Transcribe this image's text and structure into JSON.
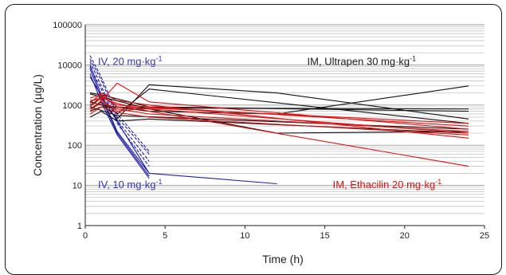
{
  "chart_data": {
    "type": "line",
    "title": "",
    "xlabel": "Time (h)",
    "ylabel": "Concentration (µg/L)",
    "xlim": [
      0,
      25
    ],
    "ylim": [
      1,
      100000
    ],
    "y_scale": "log",
    "grid": "horizontal minor + major gridlines",
    "x_ticks": [
      "0",
      "5",
      "10",
      "15",
      "20",
      "25"
    ],
    "y_ticks": [
      "1",
      "10",
      "100",
      "1000",
      "10000",
      "100000"
    ],
    "annotations": [
      {
        "parts": [
          "IV, 20 mg·kg",
          "-1"
        ],
        "color": "#3333bb",
        "x": 0.8,
        "y": 10000
      },
      {
        "parts": [
          "IM, Ultrapen 30 mg·kg",
          "-1"
        ],
        "color": "#1a1a1a",
        "x": 13.9,
        "y": 10000
      },
      {
        "parts": [
          "IV, 10 mg·kg",
          "-1"
        ],
        "color": "#3333bb",
        "x": 0.8,
        "y": 8.5
      },
      {
        "parts": [
          "IM, Ethacilin 20 mg·kg",
          "-1"
        ],
        "color": "#dd1111",
        "x": 15.5,
        "y": 8.5
      }
    ],
    "series": [
      {
        "group": "IV 20 mg/kg",
        "color": "#1f1faa",
        "dash": true,
        "x": [
          0.3,
          1,
          2,
          4
        ],
        "y": [
          17000,
          5000,
          600,
          70
        ]
      },
      {
        "group": "IV 20 mg/kg",
        "color": "#1f1faa",
        "dash": true,
        "x": [
          0.3,
          1,
          2,
          4
        ],
        "y": [
          14000,
          4200,
          500,
          60
        ]
      },
      {
        "group": "IV 20 mg/kg",
        "color": "#1f1faa",
        "dash": true,
        "x": [
          0.3,
          1,
          2,
          4
        ],
        "y": [
          12000,
          3000,
          420,
          40
        ]
      },
      {
        "group": "IV 20 mg/kg",
        "color": "#1f1faa",
        "dash": true,
        "x": [
          0.3,
          1,
          2,
          4
        ],
        "y": [
          9000,
          2500,
          350,
          30
        ]
      },
      {
        "group": "IV 10 mg/kg",
        "color": "#1f1faa",
        "dash": false,
        "x": [
          0.3,
          1,
          2,
          4
        ],
        "y": [
          10000,
          1800,
          220,
          20
        ]
      },
      {
        "group": "IV 10 mg/kg",
        "color": "#1f1faa",
        "dash": false,
        "x": [
          0.3,
          1,
          2,
          4
        ],
        "y": [
          8000,
          1500,
          200,
          17
        ]
      },
      {
        "group": "IV 10 mg/kg",
        "color": "#1f1faa",
        "dash": false,
        "x": [
          0.3,
          1,
          2,
          4
        ],
        "y": [
          6000,
          1200,
          180,
          15
        ]
      },
      {
        "group": "IV 10 mg/kg",
        "color": "#1f1faa",
        "dash": false,
        "x": [
          0.3,
          4,
          12
        ],
        "y": [
          5000,
          20,
          11
        ]
      },
      {
        "group": "IM Ultrapen 30 mg/kg",
        "color": "#111111",
        "dash": false,
        "x": [
          0.3,
          1,
          2,
          4,
          12,
          24
        ],
        "y": [
          800,
          1200,
          450,
          3200,
          2000,
          450
        ]
      },
      {
        "group": "IM Ultrapen 30 mg/kg",
        "color": "#111111",
        "dash": false,
        "x": [
          0.3,
          1,
          2,
          4,
          24
        ],
        "y": [
          1000,
          1500,
          600,
          2500,
          350
        ]
      },
      {
        "group": "IM Ultrapen 30 mg/kg",
        "color": "#111111",
        "dash": false,
        "x": [
          0.3,
          1,
          4,
          12,
          24
        ],
        "y": [
          1900,
          1600,
          800,
          200,
          220
        ]
      },
      {
        "group": "IM Ultrapen 30 mg/kg",
        "color": "#111111",
        "dash": false,
        "x": [
          0.3,
          1,
          4,
          12,
          24
        ],
        "y": [
          1200,
          1000,
          700,
          600,
          3000
        ]
      },
      {
        "group": "IM Ultrapen 30 mg/kg",
        "color": "#111111",
        "dash": false,
        "x": [
          0.3,
          1,
          4,
          24
        ],
        "y": [
          2000,
          1800,
          900,
          700
        ]
      },
      {
        "group": "IM Ultrapen 30 mg/kg",
        "color": "#111111",
        "dash": false,
        "x": [
          0.3,
          1,
          4,
          24
        ],
        "y": [
          700,
          900,
          850,
          800
        ]
      },
      {
        "group": "IM Ultrapen 30 mg/kg",
        "color": "#111111",
        "dash": false,
        "x": [
          0.3,
          1,
          2,
          4,
          24
        ],
        "y": [
          500,
          700,
          400,
          450,
          200
        ]
      },
      {
        "group": "IM Ultrapen 30 mg/kg",
        "color": "#111111",
        "dash": false,
        "x": [
          0.3,
          2,
          24
        ],
        "y": [
          900,
          550,
          250
        ]
      },
      {
        "group": "IM Ethacilin 20 mg/kg",
        "color": "#e01010",
        "dash": false,
        "x": [
          0.3,
          1,
          2,
          4,
          24
        ],
        "y": [
          900,
          1500,
          1100,
          700,
          30
        ]
      },
      {
        "group": "IM Ethacilin 20 mg/kg",
        "color": "#e01010",
        "dash": false,
        "x": [
          0.3,
          1,
          2,
          4,
          24
        ],
        "y": [
          1100,
          2000,
          1300,
          1000,
          150
        ]
      },
      {
        "group": "IM Ethacilin 20 mg/kg",
        "color": "#e01010",
        "dash": false,
        "x": [
          0.3,
          1,
          2,
          4,
          24
        ],
        "y": [
          1500,
          1800,
          900,
          800,
          200
        ]
      },
      {
        "group": "IM Ethacilin 20 mg/kg",
        "color": "#e01010",
        "dash": false,
        "x": [
          0.3,
          1,
          2,
          4,
          24
        ],
        "y": [
          700,
          1300,
          3500,
          1200,
          250
        ]
      },
      {
        "group": "IM Ethacilin 20 mg/kg",
        "color": "#e01010",
        "dash": false,
        "x": [
          0.3,
          1,
          2,
          4,
          24
        ],
        "y": [
          1200,
          1600,
          1000,
          900,
          300
        ]
      },
      {
        "group": "IM Ethacilin 20 mg/kg",
        "color": "#e01010",
        "dash": false,
        "x": [
          0.3,
          1,
          2,
          4,
          24
        ],
        "y": [
          800,
          1100,
          800,
          600,
          220
        ]
      },
      {
        "group": "IM Ethacilin 20 mg/kg",
        "color": "#e01010",
        "dash": false,
        "x": [
          0.3,
          1,
          2,
          4,
          24
        ],
        "y": [
          1300,
          1400,
          700,
          850,
          350
        ]
      },
      {
        "group": "IM Ethacilin 20 mg/kg",
        "color": "#e01010",
        "dash": false,
        "x": [
          0.3,
          1,
          2,
          4,
          24
        ],
        "y": [
          600,
          900,
          650,
          500,
          180
        ]
      }
    ]
  }
}
